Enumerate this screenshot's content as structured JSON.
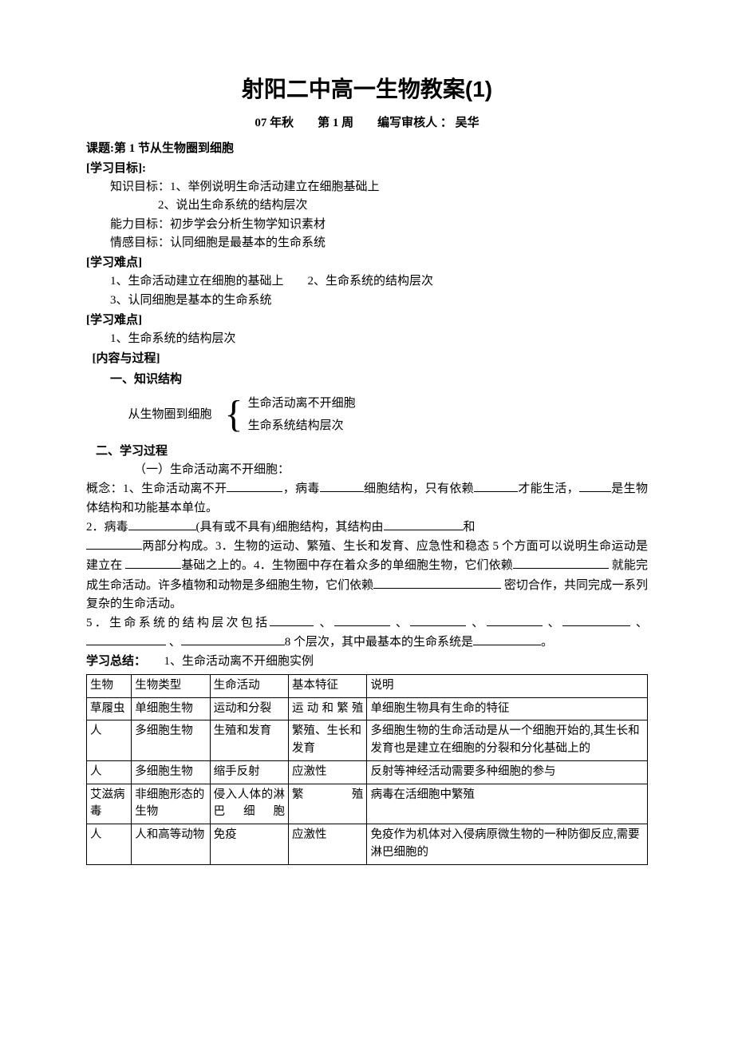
{
  "title": "射阳二中高一生物教案(1)",
  "subtitle": "07 年秋　　第 1 周　　编写审核人 ：  吴华",
  "topic_label": "课题:第 1 节从生物圈到细胞",
  "objectives_head": "[学习目标]:",
  "obj_knowledge": "知识目标：1、举例说明生命活动建立在细胞基础上",
  "obj_knowledge2": "2、说出生命系统的结构层次",
  "obj_ability": "能力目标：初步学会分析生物学知识素材",
  "obj_emotion": "情感目标：认同细胞是最基本的生命系统",
  "diff_head1": "[学习难点]",
  "diff1_line1": "1、生命活动建立在细胞的基础上　　2、生命系统的结构层次",
  "diff1_line2": "3、认同细胞是基本的生命系统",
  "diff_head2": "[学习难点]",
  "diff2_line1": "1、生命系统的结构层次",
  "content_head": "[内容与过程]",
  "struct_head": "一、知识结构",
  "bracket_left": "从生物圈到细胞",
  "bracket_r1": "生命活动离不开细胞",
  "bracket_r2": "生命系统结构层次",
  "process_head": "二、学习过程",
  "process_sub1": "（一）生命活动离不开细胞：",
  "p1a": "概念：1、生命活动离不开",
  "p1b": "，病毒",
  "p1c": "细胞结构，只有依赖",
  "p1d": "才能生活，",
  "p1e": "是生物体结构和功能基本单位。",
  "p2a": "2．病毒",
  "p2b": "(具有或不具有)细胞结构，其结构由",
  "p2c": "和",
  "p3a": "两部分构成。3．生物的运动、繁殖、生长和发育、应急性和稳态 5 个方面可以说明生命运动是建立在 ",
  "p3b": "基础之上的。4．生物圈中存在着众多的单细胞生物，它们依赖",
  "p3c": " 就能完成生命活动。许多植物和动物是多细胞生物，它们依赖",
  "p3d": " 密切合作，共同完成一系列 复杂的生命活动。",
  "p5a": "5．生命系统的结构层次包括",
  "p5sep": " 、",
  "p5end": "8 个层次，其中最基本的生命系统是",
  "p5dot": "。",
  "summary_bold": "学习总结：",
  "summary_rest": "　　1、生命活动离不开细胞实例",
  "table": {
    "columns": [
      "生物",
      "生物类型",
      "生命活动",
      "基本特征",
      "说明"
    ],
    "rows": [
      [
        "草履虫",
        "单细胞生物",
        "运动和分裂",
        "运动和繁殖",
        "单细胞生物具有生命的特征"
      ],
      [
        "人",
        "多细胞生物",
        "生殖和发育",
        "繁殖、生长和发育",
        "多细胞生物的生命活动是从一个细胞开始的,其生长和发育也是建立在细胞的分裂和分化基础上的"
      ],
      [
        "人",
        "多细胞生物",
        "缩手反射",
        "应激性",
        "反射等神经活动需要多种细胞的参与"
      ],
      [
        "艾滋病毒",
        "非细胞形态的生物",
        "侵入人体的淋巴细胞",
        "繁殖",
        "病毒在活细胞中繁殖"
      ],
      [
        "人",
        "人和高等动物",
        "免疫",
        "应激性",
        "免疫作为机体对入侵病原微生物的一种防御反应,需要淋巴细胞的"
      ]
    ],
    "justify_cols3": [
      true,
      false,
      false,
      true,
      false
    ]
  }
}
